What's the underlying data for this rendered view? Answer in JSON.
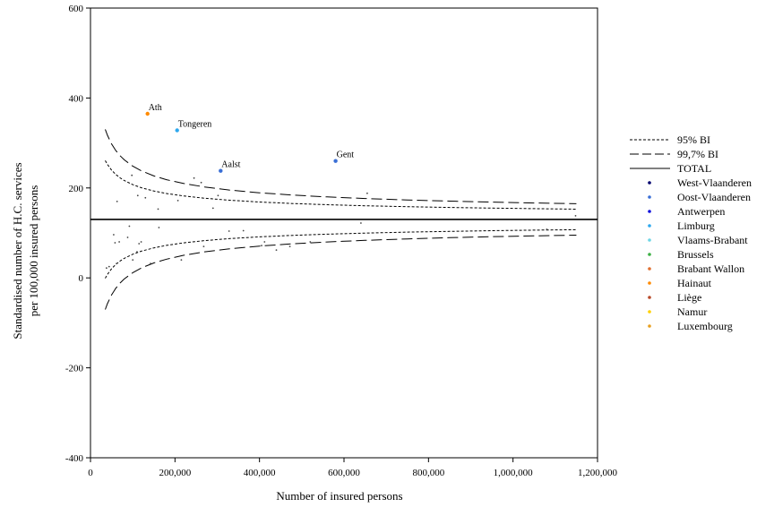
{
  "chart_data": {
    "type": "scatter",
    "subtype": "funnel plot",
    "title": "",
    "xlabel": "Number of insured persons",
    "ylabel": [
      "Standardised number of H.C. services",
      "per 100,000 insured persons"
    ],
    "xlim": [
      0,
      1200000
    ],
    "ylim": [
      -400,
      600
    ],
    "x_ticks": [
      0,
      200000,
      400000,
      600000,
      800000,
      1000000,
      1200000
    ],
    "x_tick_labels": [
      "0",
      "200,000",
      "400,000",
      "600,000",
      "800,000",
      "1,000,000",
      "1,200,000"
    ],
    "y_ticks": [
      -400,
      -200,
      0,
      200,
      400,
      600
    ],
    "y_tick_labels": [
      "-400",
      "-200",
      "0",
      "200",
      "400",
      "600"
    ],
    "grid": false,
    "legend_position": "right",
    "total": 130,
    "limit_lines": [
      {
        "name": "95% BI",
        "style": "dotted",
        "z": 1.96
      },
      {
        "name": "99,7% BI",
        "style": "dashed",
        "z": 3
      }
    ],
    "total_line": {
      "name": "TOTAL",
      "style": "solid"
    },
    "funnel_x": [
      35000,
      40000,
      50000,
      60000,
      70000,
      80000,
      100000,
      120000,
      150000,
      180000,
      220000,
      270000,
      330000,
      400000,
      480000,
      560000,
      650000,
      750000,
      850000,
      950000,
      1050000,
      1150000
    ],
    "regions": [
      {
        "name": "West-Vlaanderen",
        "color": "#00006e"
      },
      {
        "name": "Oost-Vlaanderen",
        "color": "#3a6fd6"
      },
      {
        "name": "Antwerpen",
        "color": "#1212dc"
      },
      {
        "name": "Limburg",
        "color": "#2ea8ee"
      },
      {
        "name": "Vlaams-Brabant",
        "color": "#6fd6e6"
      },
      {
        "name": "Brussels",
        "color": "#3cb044"
      },
      {
        "name": "Brabant Wallon",
        "color": "#e07030"
      },
      {
        "name": "Hainaut",
        "color": "#ff8a00"
      },
      {
        "name": "Liège",
        "color": "#b84a2a"
      },
      {
        "name": "Namur",
        "color": "#ffd000"
      },
      {
        "name": "Luxembourg",
        "color": "#e8a020"
      }
    ],
    "labeled_points": [
      {
        "label": "Ath",
        "x": 135000,
        "y": 365,
        "color": "#ff8a00"
      },
      {
        "label": "Tongeren",
        "x": 205000,
        "y": 328,
        "color": "#2ea8ee"
      },
      {
        "label": "Aalst",
        "x": 308000,
        "y": 238,
        "color": "#3a6fd6"
      },
      {
        "label": "Gent",
        "x": 580000,
        "y": 260,
        "color": "#3a6fd6"
      }
    ],
    "points": [
      {
        "x": 38000,
        "y": 22
      },
      {
        "x": 44000,
        "y": 25
      },
      {
        "x": 55000,
        "y": 96
      },
      {
        "x": 58000,
        "y": 78
      },
      {
        "x": 62000,
        "y": 32
      },
      {
        "x": 63000,
        "y": 170
      },
      {
        "x": 68000,
        "y": 80
      },
      {
        "x": 88000,
        "y": 90
      },
      {
        "x": 92000,
        "y": 115
      },
      {
        "x": 98000,
        "y": 228
      },
      {
        "x": 100000,
        "y": 40
      },
      {
        "x": 110000,
        "y": 58
      },
      {
        "x": 112000,
        "y": 183
      },
      {
        "x": 115000,
        "y": 76
      },
      {
        "x": 120000,
        "y": 80
      },
      {
        "x": 130000,
        "y": 178
      },
      {
        "x": 142000,
        "y": 32
      },
      {
        "x": 160000,
        "y": 153
      },
      {
        "x": 162000,
        "y": 112
      },
      {
        "x": 207000,
        "y": 172
      },
      {
        "x": 215000,
        "y": 40
      },
      {
        "x": 245000,
        "y": 222
      },
      {
        "x": 262000,
        "y": 212
      },
      {
        "x": 268000,
        "y": 70
      },
      {
        "x": 290000,
        "y": 155
      },
      {
        "x": 302000,
        "y": 183
      },
      {
        "x": 328000,
        "y": 104
      },
      {
        "x": 362000,
        "y": 105
      },
      {
        "x": 405000,
        "y": 72
      },
      {
        "x": 412000,
        "y": 80
      },
      {
        "x": 440000,
        "y": 62
      },
      {
        "x": 472000,
        "y": 70
      },
      {
        "x": 520000,
        "y": 80
      },
      {
        "x": 640000,
        "y": 122
      },
      {
        "x": 655000,
        "y": 188
      },
      {
        "x": 1080000,
        "y": 108
      },
      {
        "x": 1148000,
        "y": 138
      }
    ]
  }
}
